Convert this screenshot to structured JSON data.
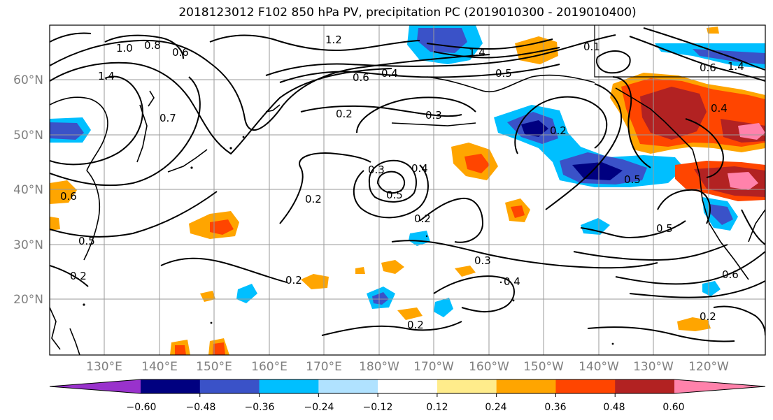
{
  "title": "2018123012 F102 850 hPa PV, precipitation PC (2019010300 - 2019010400)",
  "map": {
    "lon_labels": [
      "130°E",
      "140°E",
      "150°E",
      "160°E",
      "170°E",
      "180°W",
      "170°W",
      "160°W",
      "150°W",
      "140°W",
      "130°W",
      "120°W"
    ],
    "lat_labels": [
      "60°N",
      "50°N",
      "40°N",
      "30°N",
      "20°N"
    ],
    "contour_labels": [
      "1.2",
      "1.4",
      "1.0",
      "0.8",
      "0.6",
      "1.4",
      "0.4",
      "0.7",
      "0.6",
      "0.4",
      "0.2",
      "0.5",
      "0.2",
      "0.3",
      "0.4",
      "0.5",
      "0.3",
      "0.2",
      "0.5",
      "0.2",
      "0.3",
      "0.2",
      "0.2",
      "0.5",
      "0.6",
      "0.2",
      "0.2",
      "0.4",
      "0.5",
      "0.6",
      "0.1",
      "1.4",
      "0.6"
    ],
    "colors": {
      "land": "#000000",
      "contour": "#000000",
      "grid": "#9a9a9a"
    }
  },
  "colorbar": {
    "tick_labels": [
      "−0.60",
      "−0.48",
      "−0.36",
      "−0.24",
      "−0.12",
      "0.12",
      "0.24",
      "0.36",
      "0.48",
      "0.60"
    ],
    "colors": [
      "#9932cc",
      "#000080",
      "#3a52c8",
      "#00bfff",
      "#b0e2ff",
      "#ffffff",
      "#ffec8b",
      "#ffa500",
      "#ff4500",
      "#b22222",
      "#ff82ab"
    ]
  }
}
